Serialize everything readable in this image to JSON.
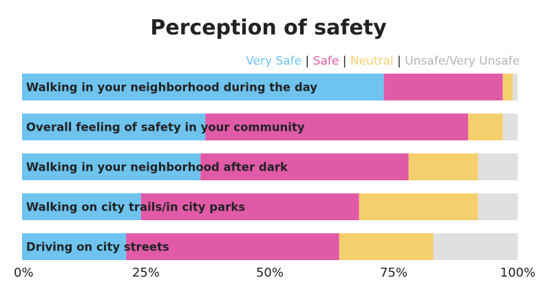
{
  "chart_data": {
    "type": "bar",
    "orientation": "horizontal",
    "stacked": true,
    "title": "Perception of safety",
    "categories": [
      "Walking in your neighborhood during the day",
      "Overall feeling of safety in your community",
      "Walking in your neighborhood after dark",
      "Walking on city trails/in city parks",
      "Driving on city streets"
    ],
    "series": [
      {
        "name": "Very Safe",
        "color": "#6ec4ef",
        "values": [
          73,
          37,
          36,
          24,
          21
        ]
      },
      {
        "name": "Safe",
        "color": "#e05aa8",
        "values": [
          24,
          53,
          42,
          44,
          43
        ]
      },
      {
        "name": "Neutral",
        "color": "#f6cf6d",
        "values": [
          2,
          7,
          14,
          24,
          19
        ]
      },
      {
        "name": "Unsafe/Very Unsafe",
        "color": "#e0e0e0",
        "values": [
          1,
          3,
          8,
          8,
          17
        ]
      }
    ],
    "legend": {
      "position": "top-right",
      "separator": " | "
    },
    "xlim": [
      0,
      100
    ],
    "xticks": [
      "0%",
      "25%",
      "50%",
      "75%",
      "100%"
    ],
    "xtick_values": [
      0,
      25,
      50,
      75,
      100
    ],
    "grid": false,
    "xlabel": "",
    "ylabel": ""
  }
}
